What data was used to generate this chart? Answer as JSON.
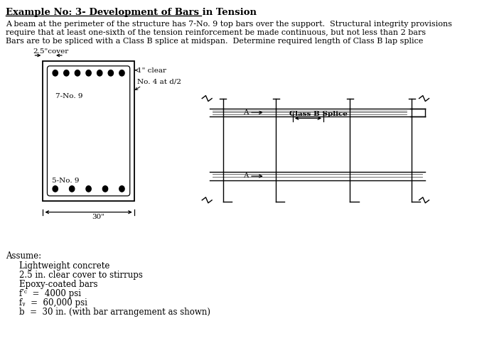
{
  "title": "Example No: 3- Development of Bars in Tension",
  "background_color": "#ffffff",
  "description_lines": [
    "A beam at the perimeter of the structure has 7-No. 9 top bars over the support.  Structural integrity provisions",
    "require that at least one-sixth of the tension reinforcement be made continuous, but not less than 2 bars",
    "Bars are to be spliced with a Class B splice at midspan.  Determine required length of Class B lap splice"
  ],
  "assume_header": "Assume:",
  "assume_lines": [
    "Lightweight concrete",
    "2.5 in. clear cover to stirrups",
    "Epoxy-coated bars",
    "f′ᶜ  =  4000 psi",
    "fᵧ  =  60,000 psi",
    "b  =  30 in. (with bar arrangement as shown)"
  ],
  "cover_label": "2.5\"cover",
  "clear_label": "1\" clear",
  "stirrup_label": "No. 4 at d/2",
  "top_bar_label": "7-No. 9",
  "bot_bar_label": "5-No. 9",
  "dim_label": "30\"",
  "splice_label": "Class B Splice",
  "section_label_A": "A"
}
